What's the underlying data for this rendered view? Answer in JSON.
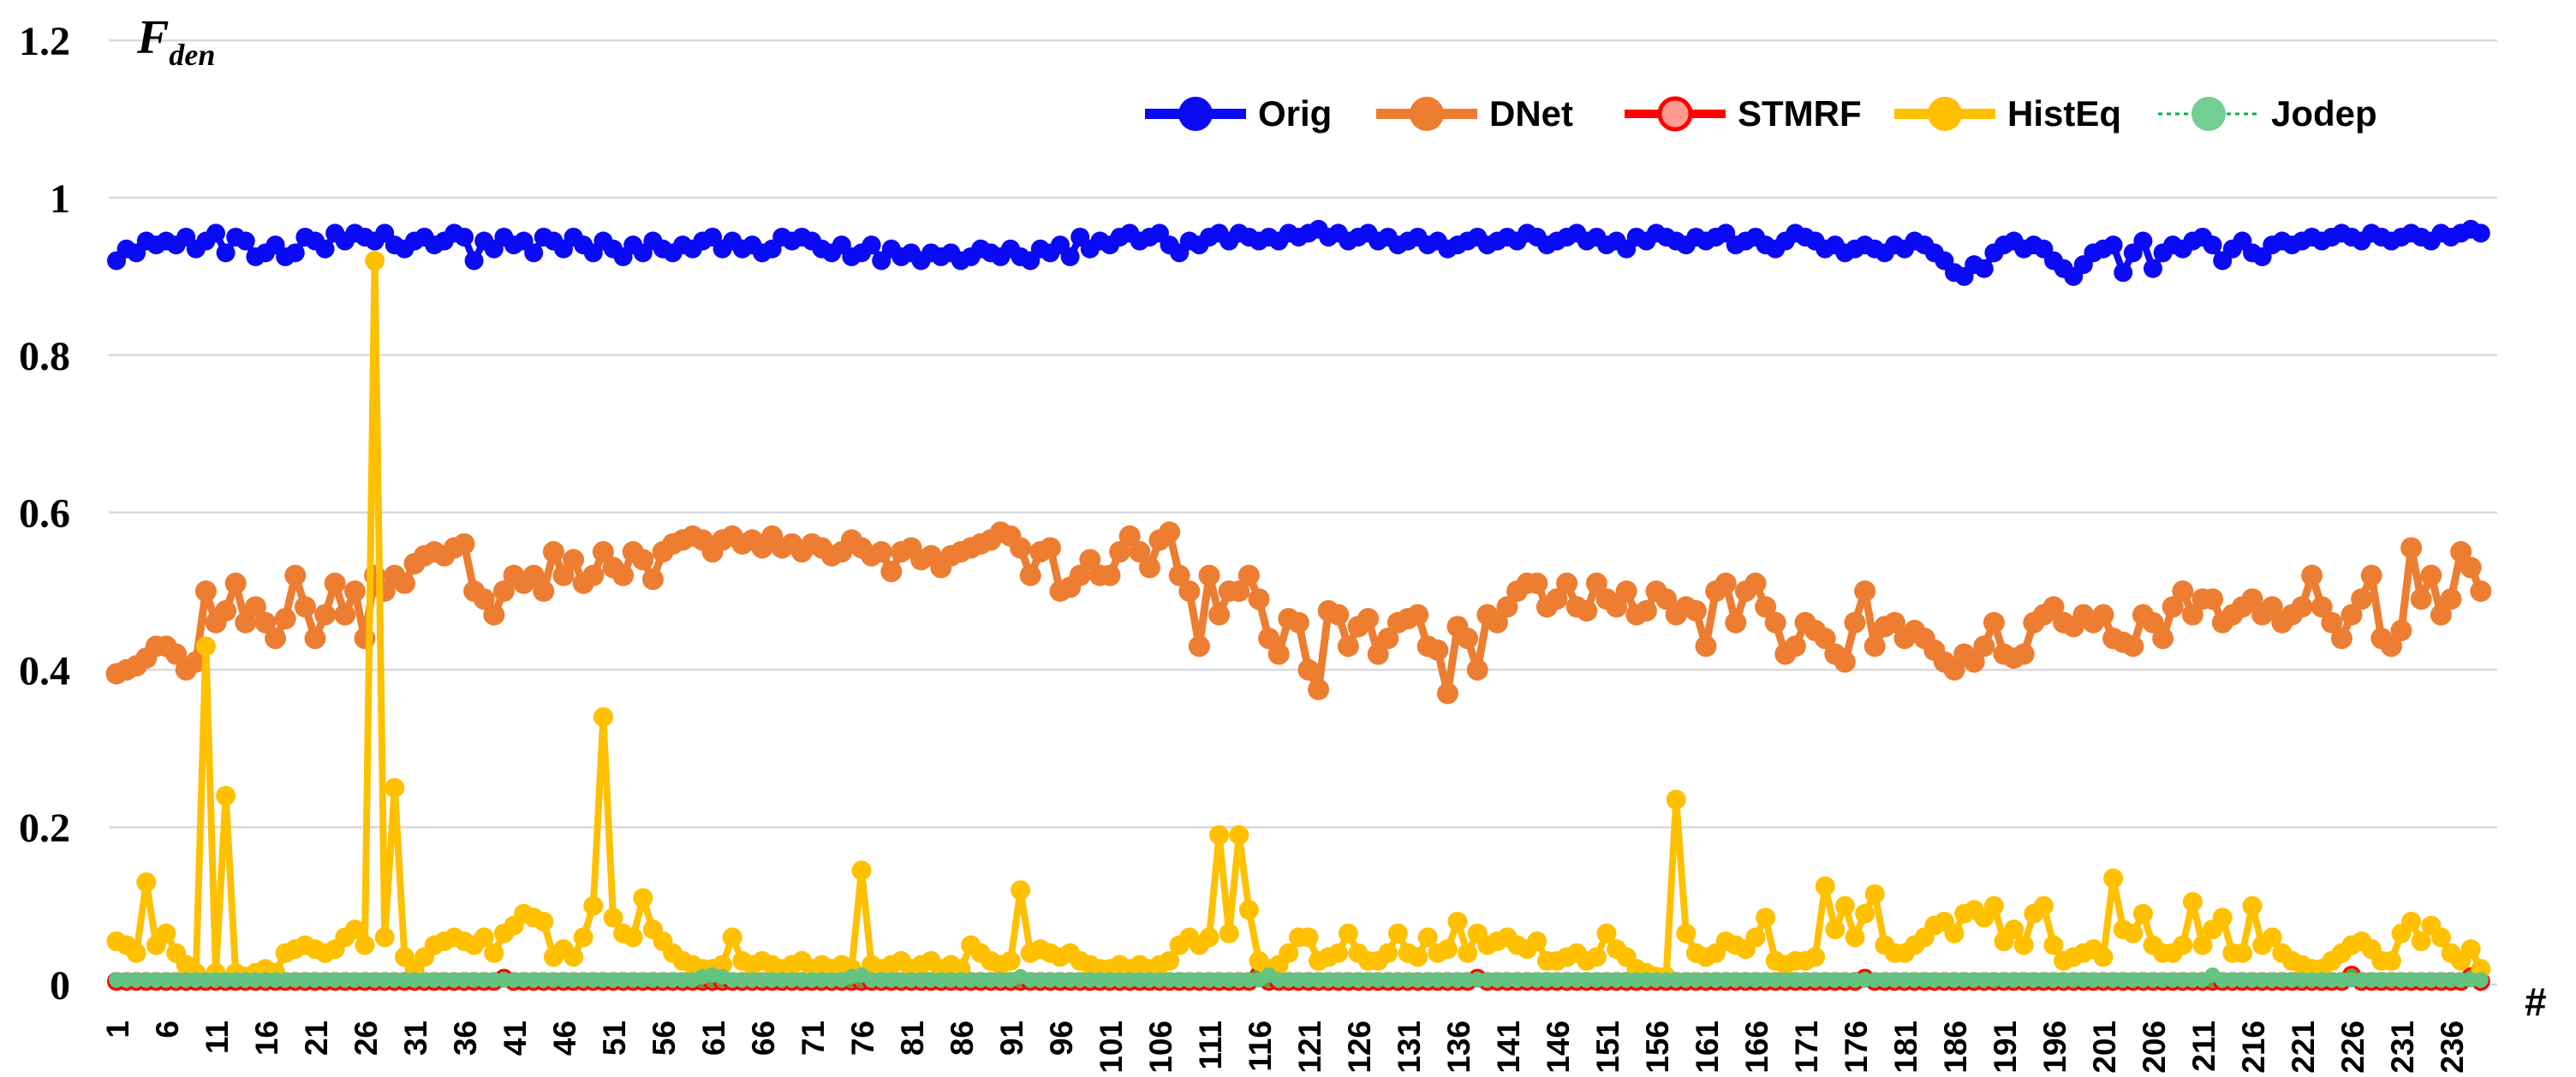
{
  "title": {
    "main": "F",
    "subscript": "den"
  },
  "x_axis_title": "#",
  "chart_data": {
    "type": "line",
    "x_description": "frame index, 1 to 239",
    "x_start": 1,
    "n_points": 239,
    "ylim": [
      0,
      1.2
    ],
    "grid": true,
    "legend_position": "top-center",
    "y_ticks": [
      {
        "label": "0",
        "value": 0
      },
      {
        "label": "0.2",
        "value": 0.2
      },
      {
        "label": "0.4",
        "value": 0.4
      },
      {
        "label": "0.6",
        "value": 0.6
      },
      {
        "label": "0.8",
        "value": 0.8
      },
      {
        "label": "1",
        "value": 1
      },
      {
        "label": "1.2",
        "value": 1.2
      }
    ],
    "x_tick_labels": [
      "1",
      "6",
      "11",
      "16",
      "21",
      "26",
      "31",
      "36",
      "41",
      "46",
      "51",
      "56",
      "61",
      "66",
      "71",
      "76",
      "81",
      "86",
      "91",
      "96",
      "101",
      "106",
      "111",
      "116",
      "121",
      "126",
      "131",
      "136",
      "141",
      "146",
      "151",
      "156",
      "161",
      "166",
      "171",
      "176",
      "181",
      "186",
      "191",
      "196",
      "201",
      "206",
      "211",
      "216",
      "221",
      "226",
      "231",
      "236"
    ],
    "x_tick_step": 5,
    "series": [
      {
        "name": "Orig",
        "color": "#0a0af5",
        "line_width": 8,
        "marker_radius": 11,
        "values": [
          0.92,
          0.935,
          0.93,
          0.945,
          0.94,
          0.945,
          0.94,
          0.95,
          0.935,
          0.945,
          0.955,
          0.93,
          0.95,
          0.945,
          0.925,
          0.93,
          0.94,
          0.925,
          0.93,
          0.95,
          0.945,
          0.935,
          0.955,
          0.945,
          0.955,
          0.95,
          0.945,
          0.955,
          0.94,
          0.935,
          0.945,
          0.95,
          0.94,
          0.945,
          0.955,
          0.95,
          0.92,
          0.945,
          0.935,
          0.95,
          0.94,
          0.945,
          0.93,
          0.95,
          0.945,
          0.935,
          0.95,
          0.94,
          0.93,
          0.945,
          0.935,
          0.925,
          0.94,
          0.93,
          0.945,
          0.935,
          0.93,
          0.94,
          0.935,
          0.945,
          0.95,
          0.935,
          0.945,
          0.935,
          0.94,
          0.93,
          0.935,
          0.95,
          0.945,
          0.95,
          0.945,
          0.935,
          0.93,
          0.94,
          0.925,
          0.93,
          0.94,
          0.92,
          0.935,
          0.925,
          0.93,
          0.92,
          0.93,
          0.925,
          0.93,
          0.92,
          0.925,
          0.935,
          0.93,
          0.925,
          0.935,
          0.925,
          0.92,
          0.935,
          0.93,
          0.94,
          0.925,
          0.95,
          0.935,
          0.945,
          0.94,
          0.95,
          0.955,
          0.945,
          0.95,
          0.955,
          0.94,
          0.93,
          0.945,
          0.94,
          0.95,
          0.955,
          0.945,
          0.955,
          0.95,
          0.945,
          0.95,
          0.945,
          0.955,
          0.95,
          0.955,
          0.96,
          0.95,
          0.955,
          0.945,
          0.95,
          0.955,
          0.945,
          0.95,
          0.94,
          0.945,
          0.95,
          0.94,
          0.945,
          0.935,
          0.94,
          0.945,
          0.95,
          0.94,
          0.945,
          0.95,
          0.945,
          0.955,
          0.95,
          0.94,
          0.945,
          0.95,
          0.955,
          0.945,
          0.95,
          0.94,
          0.945,
          0.935,
          0.95,
          0.945,
          0.955,
          0.95,
          0.945,
          0.94,
          0.95,
          0.945,
          0.95,
          0.955,
          0.94,
          0.945,
          0.95,
          0.94,
          0.935,
          0.945,
          0.955,
          0.95,
          0.945,
          0.935,
          0.94,
          0.93,
          0.935,
          0.94,
          0.935,
          0.93,
          0.94,
          0.935,
          0.945,
          0.94,
          0.93,
          0.92,
          0.905,
          0.9,
          0.915,
          0.91,
          0.93,
          0.94,
          0.945,
          0.935,
          0.94,
          0.935,
          0.92,
          0.91,
          0.9,
          0.915,
          0.93,
          0.935,
          0.94,
          0.905,
          0.93,
          0.945,
          0.91,
          0.93,
          0.94,
          0.935,
          0.945,
          0.95,
          0.94,
          0.92,
          0.935,
          0.945,
          0.93,
          0.925,
          0.94,
          0.945,
          0.94,
          0.945,
          0.95,
          0.945,
          0.95,
          0.955,
          0.95,
          0.945,
          0.955,
          0.95,
          0.945,
          0.95,
          0.955,
          0.95,
          0.945,
          0.955,
          0.95,
          0.955,
          0.96,
          0.955
        ]
      },
      {
        "name": "DNet",
        "color": "#ed7d31",
        "line_width": 9,
        "marker_radius": 12.5,
        "values": [
          0.395,
          0.4,
          0.405,
          0.415,
          0.43,
          0.43,
          0.42,
          0.4,
          0.41,
          0.5,
          0.46,
          0.475,
          0.51,
          0.46,
          0.48,
          0.46,
          0.44,
          0.465,
          0.52,
          0.48,
          0.44,
          0.47,
          0.51,
          0.47,
          0.5,
          0.44,
          0.52,
          0.5,
          0.52,
          0.51,
          0.535,
          0.545,
          0.55,
          0.545,
          0.555,
          0.56,
          0.5,
          0.49,
          0.47,
          0.5,
          0.52,
          0.51,
          0.52,
          0.5,
          0.55,
          0.52,
          0.54,
          0.51,
          0.52,
          0.55,
          0.53,
          0.52,
          0.55,
          0.54,
          0.515,
          0.55,
          0.56,
          0.565,
          0.57,
          0.565,
          0.55,
          0.565,
          0.57,
          0.56,
          0.565,
          0.555,
          0.57,
          0.555,
          0.56,
          0.55,
          0.56,
          0.555,
          0.545,
          0.55,
          0.565,
          0.555,
          0.545,
          0.55,
          0.525,
          0.55,
          0.555,
          0.54,
          0.545,
          0.53,
          0.545,
          0.55,
          0.555,
          0.56,
          0.565,
          0.575,
          0.57,
          0.555,
          0.52,
          0.55,
          0.555,
          0.5,
          0.505,
          0.52,
          0.54,
          0.52,
          0.52,
          0.55,
          0.57,
          0.55,
          0.53,
          0.565,
          0.575,
          0.52,
          0.5,
          0.43,
          0.52,
          0.47,
          0.5,
          0.5,
          0.52,
          0.49,
          0.44,
          0.42,
          0.465,
          0.46,
          0.4,
          0.375,
          0.475,
          0.47,
          0.43,
          0.455,
          0.465,
          0.42,
          0.44,
          0.46,
          0.465,
          0.47,
          0.43,
          0.425,
          0.37,
          0.455,
          0.44,
          0.4,
          0.47,
          0.46,
          0.48,
          0.5,
          0.51,
          0.51,
          0.48,
          0.49,
          0.51,
          0.48,
          0.475,
          0.51,
          0.49,
          0.48,
          0.5,
          0.47,
          0.475,
          0.5,
          0.49,
          0.47,
          0.48,
          0.475,
          0.43,
          0.5,
          0.51,
          0.46,
          0.5,
          0.51,
          0.48,
          0.46,
          0.42,
          0.43,
          0.46,
          0.45,
          0.44,
          0.42,
          0.41,
          0.46,
          0.5,
          0.43,
          0.455,
          0.46,
          0.44,
          0.45,
          0.44,
          0.425,
          0.41,
          0.4,
          0.42,
          0.41,
          0.43,
          0.46,
          0.42,
          0.415,
          0.42,
          0.46,
          0.47,
          0.48,
          0.46,
          0.455,
          0.47,
          0.46,
          0.47,
          0.44,
          0.435,
          0.43,
          0.47,
          0.46,
          0.44,
          0.48,
          0.5,
          0.47,
          0.49,
          0.49,
          0.46,
          0.47,
          0.48,
          0.49,
          0.47,
          0.48,
          0.46,
          0.47,
          0.48,
          0.52,
          0.48,
          0.46,
          0.44,
          0.47,
          0.49,
          0.52,
          0.44,
          0.43,
          0.45,
          0.555,
          0.49,
          0.52,
          0.47,
          0.49,
          0.55,
          0.53,
          0.5
        ]
      },
      {
        "name": "STMRF",
        "color": "#ff0000",
        "line_width": 4,
        "marker_radius": 9.5,
        "marker_fill": "#828e3c",
        "marker_stroke": "#ff0000",
        "legend_marker_fill": "#ff9b93",
        "baseline": 0.004,
        "overrides": {
          "40": 0.008,
          "116": 0.012,
          "138": 0.008,
          "177": 0.008,
          "226": 0.012,
          "238": 0.01
        }
      },
      {
        "name": "HistEq",
        "color": "#ffc000",
        "line_width": 8,
        "marker_radius": 11.5,
        "values": [
          0.055,
          0.05,
          0.04,
          0.13,
          0.05,
          0.065,
          0.04,
          0.025,
          0.015,
          0.43,
          0.015,
          0.24,
          0.015,
          0.01,
          0.015,
          0.02,
          0.015,
          0.04,
          0.045,
          0.05,
          0.045,
          0.04,
          0.045,
          0.06,
          0.07,
          0.05,
          0.92,
          0.06,
          0.25,
          0.035,
          0.02,
          0.035,
          0.05,
          0.055,
          0.06,
          0.055,
          0.05,
          0.06,
          0.04,
          0.065,
          0.075,
          0.09,
          0.085,
          0.08,
          0.035,
          0.045,
          0.035,
          0.06,
          0.1,
          0.34,
          0.085,
          0.065,
          0.06,
          0.11,
          0.07,
          0.055,
          0.04,
          0.03,
          0.025,
          0.02,
          0.02,
          0.025,
          0.06,
          0.03,
          0.025,
          0.03,
          0.025,
          0.02,
          0.025,
          0.03,
          0.02,
          0.025,
          0.02,
          0.025,
          0.02,
          0.145,
          0.025,
          0.02,
          0.025,
          0.03,
          0.02,
          0.025,
          0.03,
          0.02,
          0.025,
          0.02,
          0.05,
          0.04,
          0.03,
          0.025,
          0.03,
          0.12,
          0.04,
          0.045,
          0.04,
          0.035,
          0.04,
          0.03,
          0.025,
          0.02,
          0.02,
          0.025,
          0.02,
          0.025,
          0.02,
          0.025,
          0.03,
          0.05,
          0.06,
          0.05,
          0.06,
          0.19,
          0.065,
          0.19,
          0.095,
          0.03,
          0.02,
          0.025,
          0.04,
          0.06,
          0.06,
          0.03,
          0.035,
          0.04,
          0.065,
          0.04,
          0.03,
          0.03,
          0.04,
          0.065,
          0.04,
          0.035,
          0.06,
          0.04,
          0.045,
          0.08,
          0.04,
          0.065,
          0.05,
          0.055,
          0.06,
          0.05,
          0.045,
          0.055,
          0.03,
          0.03,
          0.035,
          0.04,
          0.03,
          0.035,
          0.065,
          0.045,
          0.035,
          0.02,
          0.015,
          0.01,
          0.01,
          0.235,
          0.065,
          0.04,
          0.035,
          0.04,
          0.055,
          0.05,
          0.045,
          0.06,
          0.085,
          0.03,
          0.025,
          0.03,
          0.03,
          0.035,
          0.125,
          0.07,
          0.1,
          0.06,
          0.09,
          0.115,
          0.05,
          0.04,
          0.04,
          0.05,
          0.06,
          0.075,
          0.08,
          0.065,
          0.09,
          0.095,
          0.085,
          0.1,
          0.055,
          0.07,
          0.05,
          0.09,
          0.1,
          0.05,
          0.03,
          0.035,
          0.04,
          0.045,
          0.035,
          0.135,
          0.07,
          0.065,
          0.09,
          0.05,
          0.04,
          0.04,
          0.05,
          0.105,
          0.05,
          0.07,
          0.085,
          0.04,
          0.04,
          0.1,
          0.05,
          0.06,
          0.04,
          0.03,
          0.025,
          0.02,
          0.02,
          0.03,
          0.04,
          0.05,
          0.055,
          0.045,
          0.03,
          0.03,
          0.065,
          0.08,
          0.055,
          0.075,
          0.06,
          0.04,
          0.03,
          0.045,
          0.02
        ]
      },
      {
        "name": "Jodep",
        "color": "#00b050",
        "line_width": 3,
        "marker_radius": 9,
        "line_dash": "6 6",
        "marker_fill": "#63c380",
        "legend_marker_fill": "#74ce93",
        "baseline": 0.006,
        "overrides": {
          "60": 0.01,
          "61": 0.012,
          "62": 0.01,
          "75": 0.01,
          "76": 0.012,
          "92": 0.01,
          "117": 0.012,
          "212": 0.012
        }
      }
    ],
    "layout_colors": {
      "gridline": "#d9d9d9",
      "text": "#000000",
      "background": "#ffffff"
    }
  }
}
